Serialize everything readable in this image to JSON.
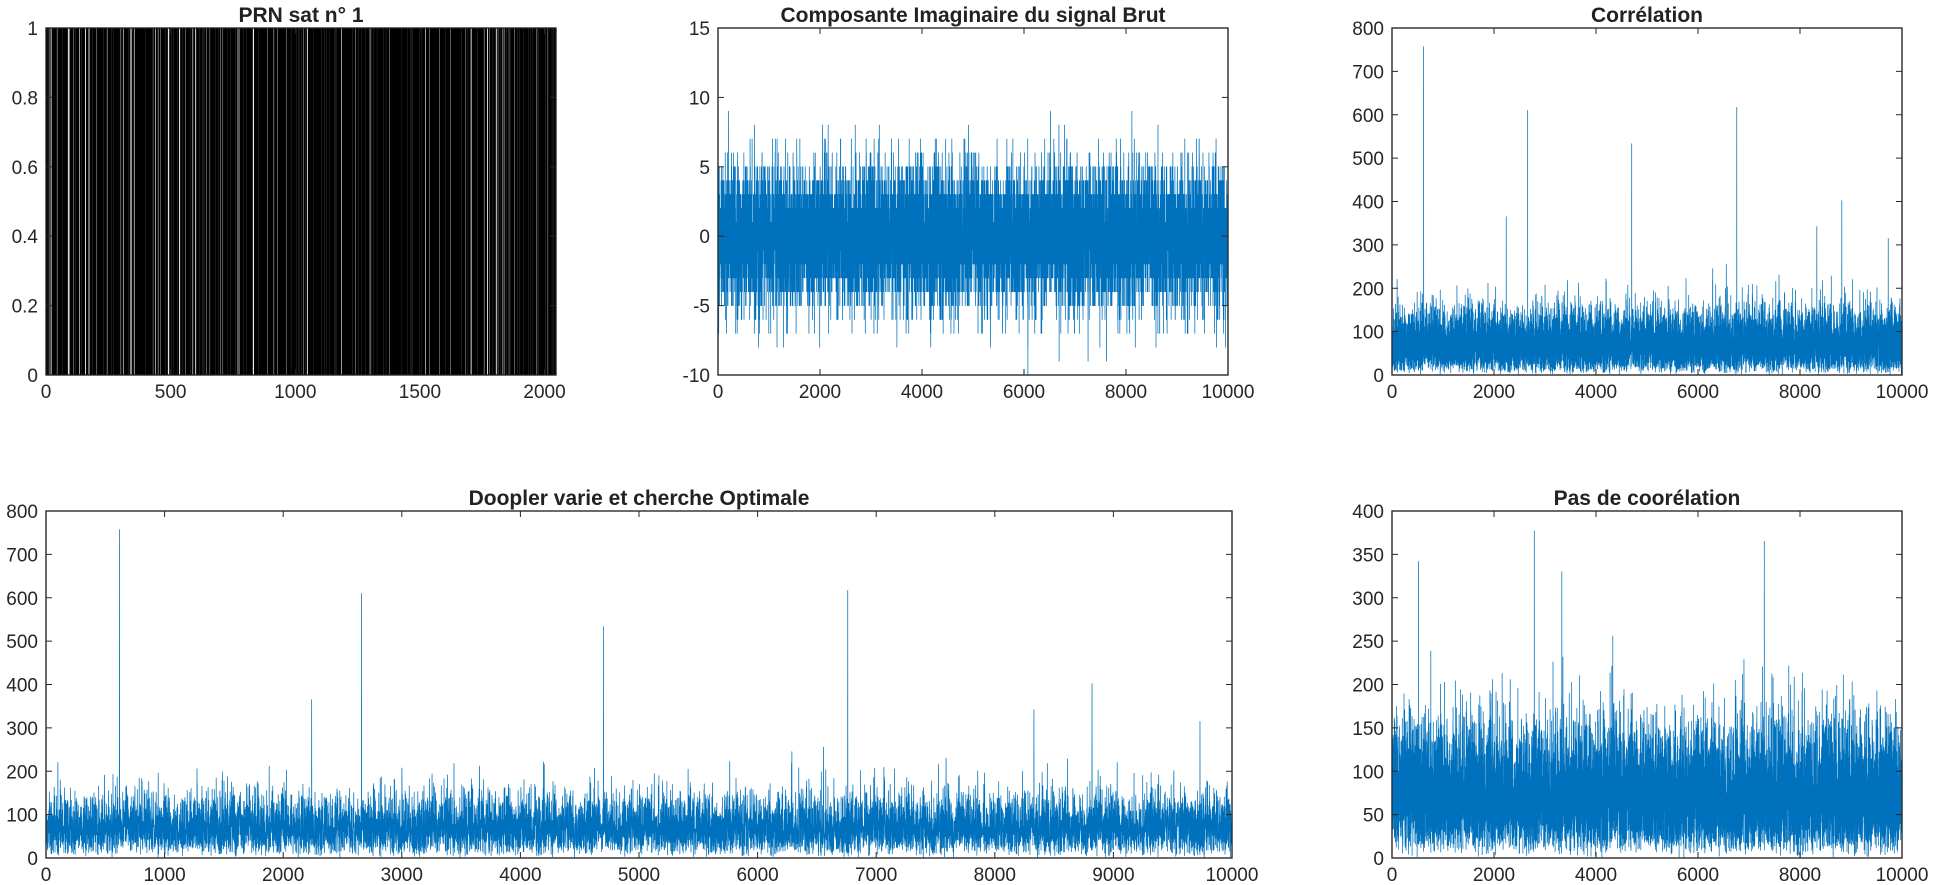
{
  "chart_data": [
    {
      "id": "prn",
      "type": "bar",
      "title": "PRN sat n° 1",
      "xlabel": "",
      "ylabel": "",
      "xlim": [
        0,
        2046
      ],
      "ylim": [
        0,
        1
      ],
      "xticks": [
        0,
        500,
        1000,
        1500,
        2000
      ],
      "yticks": [
        0,
        0.2,
        0.4,
        0.6,
        0.8,
        1
      ],
      "xtick_labels": [
        "0",
        "500",
        "1000",
        "1500",
        "2000"
      ],
      "ytick_labels": [
        "0",
        "0.2",
        "0.4",
        "0.6",
        "0.8",
        "1"
      ],
      "series": [
        {
          "color": "#000000",
          "description": "binary PRN code of 2046 chips, values 0 or 1, each 1 drawn as vertical line"
        }
      ],
      "grid": false
    },
    {
      "id": "imag",
      "type": "line",
      "title": "Composante Imaginaire du signal Brut",
      "xlabel": "",
      "ylabel": "",
      "xlim": [
        0,
        10000
      ],
      "ylim": [
        -10,
        15
      ],
      "xticks": [
        0,
        2000,
        4000,
        6000,
        8000,
        10000
      ],
      "yticks": [
        -10,
        -5,
        0,
        5,
        10,
        15
      ],
      "xtick_labels": [
        "0",
        "2000",
        "4000",
        "6000",
        "8000",
        "10000"
      ],
      "ytick_labels": [
        "-10",
        "-5",
        "0",
        "5",
        "10",
        "15"
      ],
      "series": [
        {
          "color": "#0072BD",
          "n_points": 10000,
          "range": [
            -10,
            11
          ],
          "typical_band": [
            -5,
            6
          ]
        }
      ],
      "grid": false
    },
    {
      "id": "corr",
      "type": "line",
      "title": "Corrélation",
      "xlabel": "",
      "ylabel": "",
      "xlim": [
        0,
        10000
      ],
      "ylim": [
        0,
        800
      ],
      "xticks": [
        0,
        2000,
        4000,
        6000,
        8000,
        10000
      ],
      "yticks": [
        0,
        100,
        200,
        300,
        400,
        500,
        600,
        700,
        800
      ],
      "xtick_labels": [
        "0",
        "2000",
        "4000",
        "6000",
        "8000",
        "10000"
      ],
      "ytick_labels": [
        "0",
        "100",
        "200",
        "300",
        "400",
        "500",
        "600",
        "700",
        "800"
      ],
      "series": [
        {
          "color": "#0072BD",
          "n_points": 10000,
          "noise_range": [
            0,
            300
          ],
          "peaks": [
            {
              "x": 620,
              "y": 757
            },
            {
              "x": 2240,
              "y": 365
            },
            {
              "x": 2660,
              "y": 610
            },
            {
              "x": 4700,
              "y": 533
            },
            {
              "x": 6760,
              "y": 617
            },
            {
              "x": 8330,
              "y": 342
            },
            {
              "x": 8820,
              "y": 402
            },
            {
              "x": 9730,
              "y": 315
            }
          ]
        }
      ],
      "grid": false
    },
    {
      "id": "doppler",
      "type": "line",
      "title": "Doopler varie et cherche Optimale",
      "xlabel": "",
      "ylabel": "",
      "xlim": [
        0,
        10000
      ],
      "ylim": [
        0,
        800
      ],
      "xticks": [
        0,
        1000,
        2000,
        3000,
        4000,
        5000,
        6000,
        7000,
        8000,
        9000,
        10000
      ],
      "yticks": [
        0,
        100,
        200,
        300,
        400,
        500,
        600,
        700,
        800
      ],
      "xtick_labels": [
        "0",
        "1000",
        "2000",
        "3000",
        "4000",
        "5000",
        "6000",
        "7000",
        "8000",
        "9000",
        "10000"
      ],
      "ytick_labels": [
        "0",
        "100",
        "200",
        "300",
        "400",
        "500",
        "600",
        "700",
        "800"
      ],
      "series": [
        {
          "color": "#0072BD",
          "n_points": 10000,
          "noise_range": [
            0,
            300
          ],
          "peaks": [
            {
              "x": 620,
              "y": 757
            },
            {
              "x": 2240,
              "y": 365
            },
            {
              "x": 2660,
              "y": 610
            },
            {
              "x": 4700,
              "y": 533
            },
            {
              "x": 6760,
              "y": 617
            },
            {
              "x": 8330,
              "y": 342
            },
            {
              "x": 8820,
              "y": 402
            },
            {
              "x": 9730,
              "y": 315
            }
          ]
        }
      ],
      "grid": false
    },
    {
      "id": "pas",
      "type": "line",
      "title": "Pas de coorélation",
      "xlabel": "",
      "ylabel": "",
      "xlim": [
        0,
        10000
      ],
      "ylim": [
        0,
        400
      ],
      "xticks": [
        0,
        2000,
        4000,
        6000,
        8000,
        10000
      ],
      "yticks": [
        0,
        50,
        100,
        150,
        200,
        250,
        300,
        350,
        400
      ],
      "xtick_labels": [
        "0",
        "2000",
        "4000",
        "6000",
        "8000",
        "10000"
      ],
      "ytick_labels": [
        "0",
        "50",
        "100",
        "150",
        "200",
        "250",
        "300",
        "350",
        "400"
      ],
      "series": [
        {
          "color": "#0072BD",
          "n_points": 10000,
          "noise_range": [
            0,
            300
          ],
          "peaks": [
            {
              "x": 520,
              "y": 342
            },
            {
              "x": 2790,
              "y": 377
            },
            {
              "x": 3330,
              "y": 330
            },
            {
              "x": 7300,
              "y": 365
            }
          ]
        }
      ],
      "grid": false
    }
  ]
}
